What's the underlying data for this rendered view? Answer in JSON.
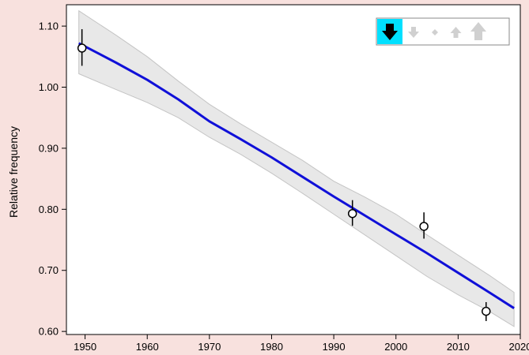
{
  "chart_data": {
    "type": "line",
    "ylabel": "Relative frequency",
    "xlabel": "",
    "xlim": [
      1947,
      2020
    ],
    "ylim": [
      0.595,
      1.135
    ],
    "x_ticks": [
      "1950",
      "1960",
      "1970",
      "1980",
      "1990",
      "2000",
      "2010",
      "2020"
    ],
    "y_ticks": [
      "0.60",
      "0.70",
      "0.80",
      "0.90",
      "1.00",
      "1.10"
    ],
    "grid": false,
    "series": [
      {
        "kind": "trend-line",
        "color": "#1010d8",
        "x": [
          1949,
          1955,
          1960,
          1965,
          1970,
          1975,
          1980,
          1985,
          1990,
          1995,
          2000,
          2005,
          2010,
          2015,
          2019
        ],
        "y": [
          1.072,
          1.04,
          1.012,
          0.98,
          0.944,
          0.915,
          0.885,
          0.853,
          0.821,
          0.79,
          0.759,
          0.728,
          0.696,
          0.664,
          0.638
        ]
      },
      {
        "kind": "confidence-band",
        "color": "#e8e8e8",
        "x": [
          1949,
          1955,
          1960,
          1965,
          1970,
          1975,
          1980,
          1985,
          1990,
          1995,
          2000,
          2005,
          2010,
          2015,
          2019
        ],
        "upper": [
          1.125,
          1.085,
          1.05,
          1.01,
          0.972,
          0.94,
          0.91,
          0.88,
          0.846,
          0.82,
          0.792,
          0.758,
          0.725,
          0.692,
          0.664
        ],
        "lower": [
          1.022,
          0.996,
          0.975,
          0.95,
          0.918,
          0.89,
          0.859,
          0.826,
          0.792,
          0.758,
          0.724,
          0.69,
          0.66,
          0.633,
          0.608
        ]
      },
      {
        "kind": "observations",
        "x": [
          1949.5,
          1993,
          2004.5,
          2014.5
        ],
        "y": [
          1.064,
          0.793,
          0.772,
          0.633
        ],
        "err_low": [
          1.035,
          0.773,
          0.752,
          0.617
        ],
        "err_high": [
          1.095,
          0.815,
          0.795,
          0.648
        ]
      }
    ]
  },
  "legend_toolbar": {
    "icons": [
      {
        "name": "big-down-arrow-icon",
        "active": true
      },
      {
        "name": "small-down-arrow-icon",
        "active": false
      },
      {
        "name": "dot-icon",
        "active": false
      },
      {
        "name": "small-up-arrow-icon",
        "active": false
      },
      {
        "name": "big-up-arrow-icon",
        "active": false
      }
    ],
    "active_color": "#00e0ff",
    "inactive_color": "#d0d0d0"
  }
}
